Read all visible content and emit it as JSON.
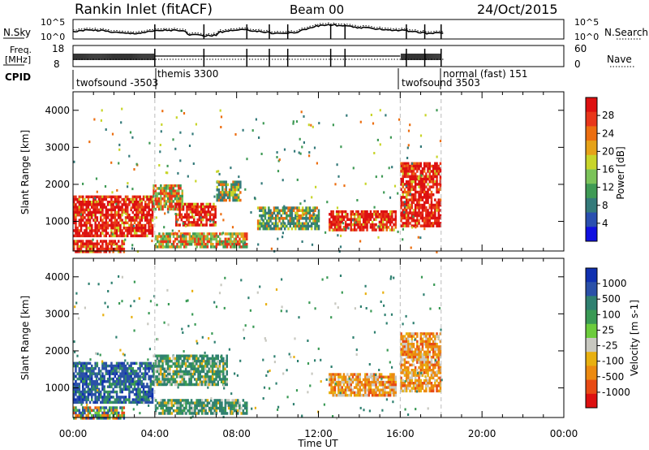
{
  "header": {
    "station": "Rankin Inlet (fitACF)",
    "beam": "Beam 00",
    "date": "24/Oct/2015"
  },
  "colors": {
    "noise_line": "#000000",
    "dashed_line": "#bbbbbb",
    "power_scale": [
      "#1010e0",
      "#2a4fb0",
      "#347a7a",
      "#3f9a55",
      "#7bc35a",
      "#c8d52a",
      "#e6a218",
      "#ec6e10",
      "#e8361a",
      "#dd1010"
    ],
    "velocity_scale": [
      "#1030b0",
      "#2a50a8",
      "#2f8070",
      "#3a9a55",
      "#6ccc3c",
      "#c8c8c0",
      "#e8b010",
      "#ec8a10",
      "#e84a14",
      "#dd1010"
    ]
  },
  "panels": {
    "noise": {
      "left_label": "N.Sky",
      "left_ticks": [
        "10^5",
        "10^0"
      ],
      "right_ticks": [
        "10^5",
        "10^0"
      ],
      "right_label": "N.Search"
    },
    "freq": {
      "left_label_1": "Freq.",
      "left_label_2": "[MHz]",
      "left_ticks": [
        "18",
        "8"
      ],
      "right_ticks": [
        "60",
        "0"
      ],
      "right_label": "Nave"
    },
    "cpid": {
      "label": "CPID",
      "entries": [
        "twofsound -3503",
        "themis 3300",
        "twofsound 3503",
        "normal (fast) 151"
      ]
    }
  },
  "chart_data": [
    {
      "type": "heatmap",
      "name": "power",
      "ylabel": "Slant Range [km]",
      "xlabel": "",
      "colorbar_label": "Power [dB]",
      "colorbar_ticks": [
        "28",
        "24",
        "20",
        "16",
        "12",
        "8",
        "4"
      ],
      "y_ticks": [
        "1000",
        "2000",
        "3000",
        "4000"
      ],
      "ylim": [
        200,
        4500
      ],
      "xlim_hours": [
        0,
        24
      ],
      "dashed_vertical_lines_hours": [
        4.0,
        16.0,
        18.0
      ],
      "echo_regions": [
        {
          "t0": 0.0,
          "t1": 3.9,
          "r0": 600,
          "r1": 1700,
          "value": "high"
        },
        {
          "t0": 0.0,
          "t1": 2.5,
          "r0": 200,
          "r1": 500,
          "value": "high"
        },
        {
          "t0": 3.9,
          "t1": 5.3,
          "r0": 1300,
          "r1": 2000,
          "value": "medium"
        },
        {
          "t0": 5.0,
          "t1": 7.0,
          "r0": 900,
          "r1": 1500,
          "value": "high"
        },
        {
          "t0": 4.0,
          "t1": 8.5,
          "r0": 300,
          "r1": 700,
          "value": "medium"
        },
        {
          "t0": 7.0,
          "t1": 8.2,
          "r0": 1600,
          "r1": 2100,
          "value": "low"
        },
        {
          "t0": 12.5,
          "t1": 15.8,
          "r0": 800,
          "r1": 1300,
          "value": "high"
        },
        {
          "t0": 16.0,
          "t1": 18.0,
          "r0": 900,
          "r1": 2600,
          "value": "high"
        },
        {
          "t0": 9.0,
          "t1": 12.0,
          "r0": 800,
          "r1": 1400,
          "value": "low"
        }
      ]
    },
    {
      "type": "heatmap",
      "name": "velocity",
      "ylabel": "Slant Range [km]",
      "xlabel": "Time UT",
      "colorbar_label": "Velocity [m s-1]",
      "colorbar_ticks": [
        "1000",
        "500",
        "100",
        "25",
        "-25",
        "-100",
        "-500",
        "-1000"
      ],
      "y_ticks": [
        "1000",
        "2000",
        "3000",
        "4000"
      ],
      "x_ticks": [
        "00:00",
        "04:00",
        "08:00",
        "12:00",
        "16:00",
        "20:00",
        "00:00"
      ],
      "ylim": [
        200,
        4500
      ],
      "xlim_hours": [
        0,
        24
      ],
      "dashed_vertical_lines_hours": [
        4.0,
        16.0,
        18.0
      ],
      "echo_regions": [
        {
          "t0": 0.0,
          "t1": 3.9,
          "r0": 600,
          "r1": 1700,
          "value": "positive"
        },
        {
          "t0": 0.0,
          "t1": 2.5,
          "r0": 200,
          "r1": 500,
          "value": "mixed"
        },
        {
          "t0": 3.9,
          "t1": 7.5,
          "r0": 1100,
          "r1": 1900,
          "value": "low"
        },
        {
          "t0": 4.0,
          "t1": 8.5,
          "r0": 300,
          "r1": 700,
          "value": "low"
        },
        {
          "t0": 12.5,
          "t1": 15.8,
          "r0": 800,
          "r1": 1400,
          "value": "negative"
        },
        {
          "t0": 16.0,
          "t1": 18.0,
          "r0": 900,
          "r1": 2500,
          "value": "negative"
        }
      ]
    }
  ]
}
